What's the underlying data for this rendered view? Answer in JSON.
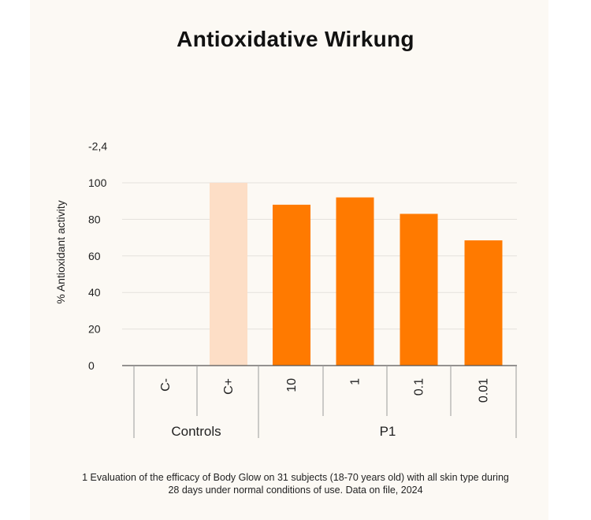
{
  "title": "Antioxidative Wirkung",
  "footnote": "1 Evaluation of the efficacy of Body Glow on 31 subjects (18-70 years old) with all skin type during 28 days under normal conditions of use. Data on file, 2024",
  "colors": {
    "background": "#fcf9f4",
    "control_positive": "#fddec6",
    "product": "#ff7a00",
    "grid": "#e4e1dc",
    "axis": "#9a9a9a",
    "text": "#222222"
  },
  "chart_data": {
    "type": "bar",
    "title": "Antioxidative Wirkung",
    "ylabel": "% Antioxidant activity",
    "xlabel": "",
    "ylim": [
      0,
      100
    ],
    "yticks": [
      "0",
      "20",
      "40",
      "60",
      "80",
      "100"
    ],
    "extra_top_tick": "-2,4",
    "grid": true,
    "categories": [
      "C-",
      "C+",
      "10",
      "1",
      "0.1",
      "0.01"
    ],
    "values": [
      0,
      100,
      88,
      92,
      83,
      68.5
    ],
    "bar_colors": [
      "#fddec6",
      "#fddec6",
      "#ff7a00",
      "#ff7a00",
      "#ff7a00",
      "#ff7a00"
    ],
    "groups": [
      {
        "name": "Controls",
        "categories": [
          "C-",
          "C+"
        ]
      },
      {
        "name": "P1",
        "categories": [
          "10",
          "1",
          "0.1",
          "0.01"
        ]
      }
    ]
  }
}
